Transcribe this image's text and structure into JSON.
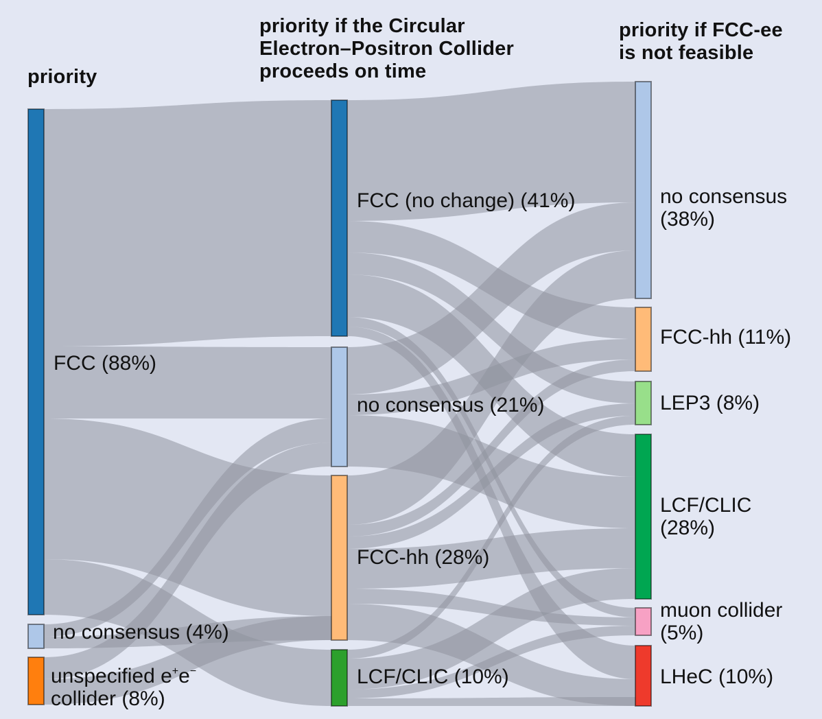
{
  "columns": [
    {
      "title": "priority"
    },
    {
      "title_lines": [
        "priority if the Circular",
        "Electron–Positron Collider",
        "proceeds on time"
      ]
    },
    {
      "title_lines": [
        "priority if FCC-ee",
        "is not feasible"
      ]
    }
  ],
  "nodes": {
    "fcc_left": {
      "label": "FCC (88%)",
      "color": "#1f77b4"
    },
    "nocons_left": {
      "label": "no consensus (4%)",
      "color": "#aec7e8"
    },
    "unspec_left": {
      "label_base": "unspecified e",
      "label_sup1": "+",
      "label_mid": "e",
      "label_sup2": "−",
      "label_line2": "collider (8%)",
      "color": "#ff7f0e"
    },
    "fcc_mid": {
      "label": "FCC (no change) (41%)",
      "color": "#1f77b4"
    },
    "nocons_mid": {
      "label": "no consensus (21%)",
      "color": "#aec7e8"
    },
    "fcchh_mid": {
      "label": "FCC-hh (28%)",
      "color": "#ffbb78"
    },
    "lcf_mid": {
      "label": "LCF/CLIC (10%)",
      "color": "#2ca02c"
    },
    "nocons_right": {
      "label_lines": [
        "no consensus",
        "(38%)"
      ],
      "color": "#aec7e8"
    },
    "fcchh_right": {
      "label": "FCC-hh (11%)",
      "color": "#ffbb78"
    },
    "lep3_right": {
      "label": "LEP3 (8%)",
      "color": "#98df8a"
    },
    "lcf_right": {
      "label_lines": [
        "LCF/CLIC",
        "(28%)"
      ],
      "color": "#00a651"
    },
    "muon_right": {
      "label_lines": [
        "muon collider",
        "(5%)"
      ],
      "color": "#f7a1c4"
    },
    "lhec_right": {
      "label": "LHeC (10%)",
      "color": "#ee3a2c"
    }
  },
  "flow_color": "#8f939e"
}
